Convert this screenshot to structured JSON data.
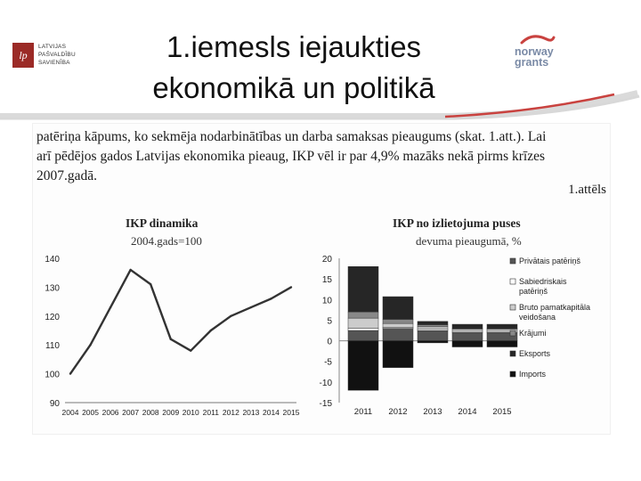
{
  "header": {
    "title_line1": "1.iemesls iejaukties",
    "title_line2": "ekonomikā un politikā",
    "logo_left": {
      "mark": "lp",
      "line1": "LATVIJAS",
      "line2": "PAŠVALDĪBU",
      "line3": "SAVIENĪBA"
    },
    "logo_right": {
      "line1": "norway",
      "line2": "grants"
    }
  },
  "colors": {
    "accent_red": "#c9423f",
    "logo_blue": "#7a8aa6",
    "logo_left": "#9b2a26"
  },
  "document": {
    "line1": "patēriņa kāpums, ko sekmēja nodarbinātības un darba samaksas pieaugums (skat. 1.att.). Lai",
    "line2": "arī pēdējos gados Latvijas ekonomika pieaug, IKP vēl ir par 4,9% mazāks nekā pirms krīzes",
    "line3": "2007.gadā.",
    "figure_label": "1.attēls"
  },
  "chart_data": [
    {
      "type": "line",
      "title": "IKP dinamika",
      "subtitle": "2004.gads=100",
      "x": [
        "2004",
        "2005",
        "2006",
        "2007",
        "2008",
        "2009",
        "2010",
        "2011",
        "2012",
        "2013",
        "2014",
        "2015"
      ],
      "values": [
        100,
        110,
        123,
        136,
        131,
        112,
        108,
        115,
        120,
        123,
        126,
        130
      ],
      "ylim": [
        90,
        140
      ],
      "yticks": [
        "90",
        "100",
        "110",
        "120",
        "130",
        "140"
      ]
    },
    {
      "type": "bar",
      "stacked": true,
      "title": "IKP no izlietojuma puses",
      "subtitle": "devuma pieaugumā, %",
      "categories": [
        "2011",
        "2012",
        "2013",
        "2014",
        "2015"
      ],
      "ylim": [
        -15,
        20
      ],
      "yticks": [
        "20",
        "15",
        "10",
        "5",
        "0",
        "-5",
        "-10",
        "-15"
      ],
      "series": [
        {
          "name": "Privātais patēriņš",
          "color": "#555555",
          "values": [
            2.5,
            3.0,
            2.5,
            2.0,
            2.0
          ]
        },
        {
          "name": "Sabiedriskais patēriņš",
          "color": "#ffffff",
          "values": [
            0.5,
            0.2,
            0.4,
            0.3,
            0.3
          ]
        },
        {
          "name": "Bruto pamatkapitāla veidošana",
          "color": "#cccccc",
          "values": [
            2.5,
            1.0,
            0.5,
            0.5,
            0.5
          ]
        },
        {
          "name": "Krājumi",
          "color": "#888888",
          "values": [
            1.5,
            1.0,
            0.5,
            0.2,
            0.2
          ]
        },
        {
          "name": "Eksports",
          "color": "#262626",
          "values": [
            11.0,
            5.5,
            0.8,
            1.0,
            1.0
          ]
        },
        {
          "name": "Imports",
          "color": "#111111",
          "values": [
            -12.0,
            -6.5,
            -0.5,
            -1.5,
            -1.5
          ]
        }
      ]
    }
  ]
}
